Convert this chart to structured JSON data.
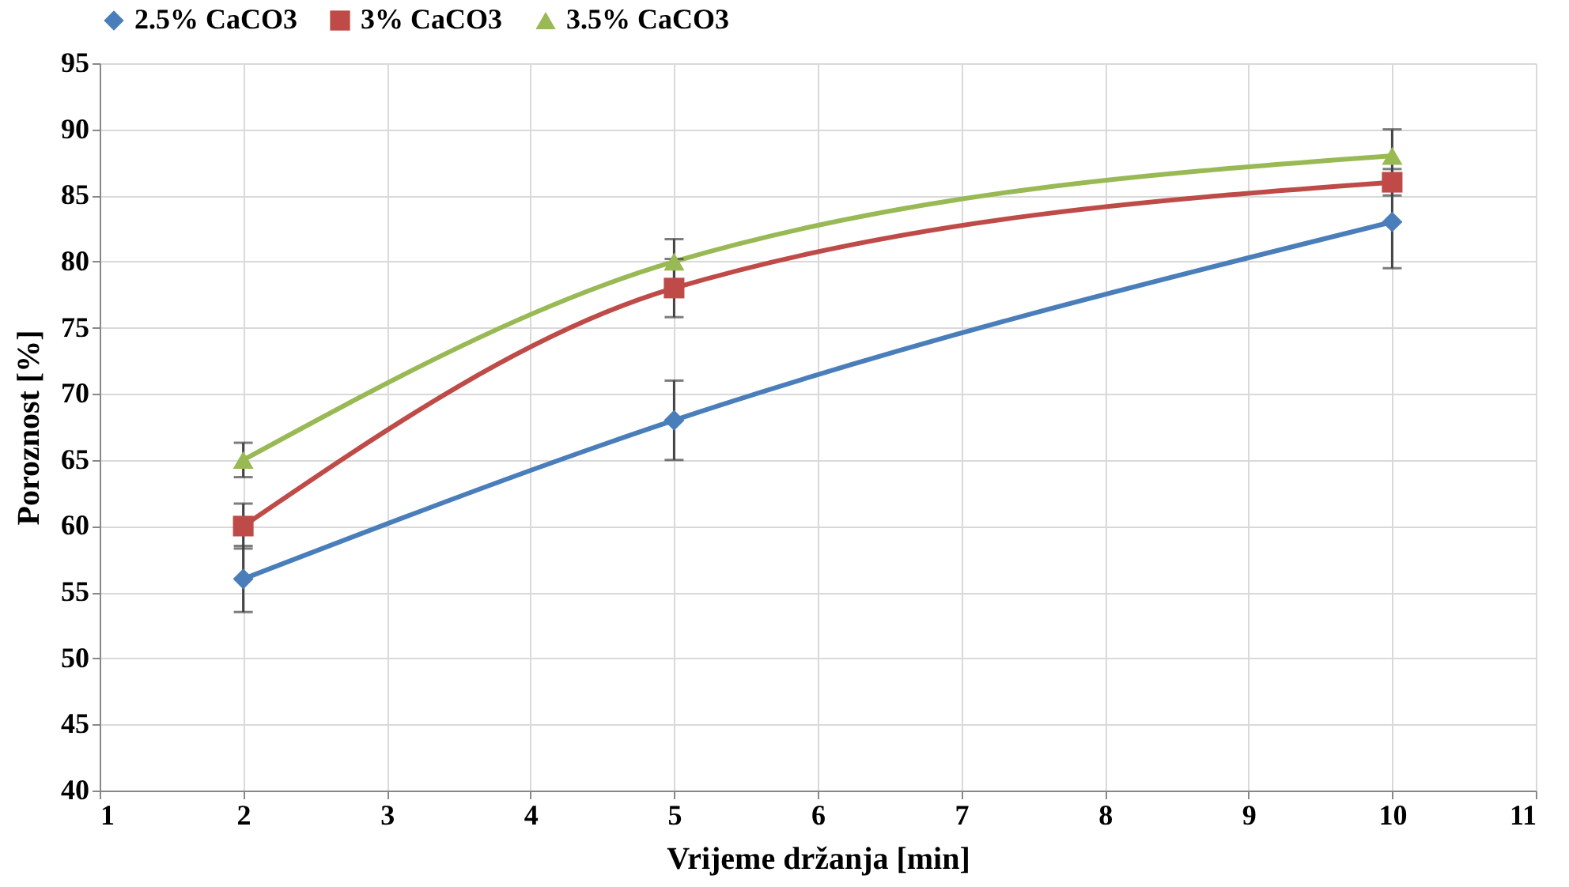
{
  "chart_data": {
    "type": "line",
    "xlabel": "Vrijeme držanja [min]",
    "ylabel": "Poroznost [%]",
    "x": [
      2,
      5,
      10
    ],
    "series": [
      {
        "name": "2.5% CaCO3",
        "color": "#4a7ebb",
        "marker": "diamond",
        "values": [
          56,
          68,
          83
        ],
        "errors": [
          2.5,
          3,
          3.5
        ]
      },
      {
        "name": "3% CaCO3",
        "color": "#be4b48",
        "marker": "square",
        "values": [
          60,
          78,
          86
        ],
        "errors": [
          1.7,
          2.2,
          1
        ]
      },
      {
        "name": "3.5% CaCO3",
        "color": "#98b954",
        "marker": "triangle",
        "values": [
          65,
          80,
          88
        ],
        "errors": [
          1.3,
          1.7,
          2
        ]
      }
    ],
    "xlim": [
      1,
      11
    ],
    "xticks": [
      1,
      2,
      3,
      4,
      5,
      6,
      7,
      8,
      9,
      10,
      11
    ],
    "ylim": [
      40,
      95
    ],
    "yticks": [
      40,
      45,
      50,
      55,
      60,
      65,
      70,
      75,
      80,
      85,
      90,
      95
    ],
    "grid": true,
    "legend": "top",
    "line_style": "solid"
  }
}
